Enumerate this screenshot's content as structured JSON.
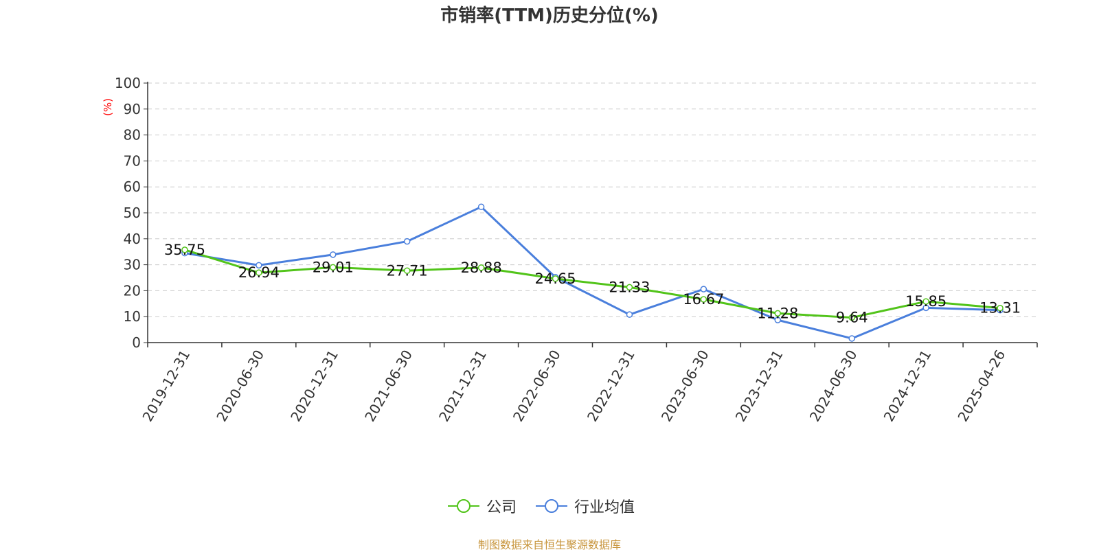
{
  "title": "市销率(TTM)历史分位(%)",
  "source_note": "制图数据来自恒生聚源数据库",
  "colors": {
    "company": "#52c41a",
    "industry": "#4a7fdc",
    "unit_label": "#ff0000",
    "source_note": "#c8963e"
  },
  "chart_data": {
    "type": "line",
    "title": "市销率(TTM)历史分位(%)",
    "ylabel": "(%)",
    "xlabel": "",
    "ylim": [
      0,
      100
    ],
    "yticks": [
      0,
      10,
      20,
      30,
      40,
      50,
      60,
      70,
      80,
      90,
      100
    ],
    "grid": true,
    "legend_position": "bottom-center",
    "categories": [
      "2019-12-31",
      "2020-06-30",
      "2020-12-31",
      "2021-06-30",
      "2021-12-31",
      "2022-06-30",
      "2022-12-31",
      "2023-06-30",
      "2023-12-31",
      "2024-06-30",
      "2024-12-31",
      "2025-04-26"
    ],
    "series": [
      {
        "name": "公司",
        "color": "#52c41a",
        "show_labels": true,
        "values": [
          35.75,
          26.94,
          29.01,
          27.71,
          28.88,
          24.65,
          21.33,
          16.67,
          11.28,
          9.64,
          15.85,
          13.31
        ]
      },
      {
        "name": "行业均值",
        "color": "#4a7fdc",
        "show_labels": false,
        "values": [
          34.5,
          29.8,
          33.9,
          39.0,
          52.3,
          25.2,
          10.8,
          20.6,
          8.7,
          1.6,
          13.4,
          12.5
        ]
      }
    ]
  }
}
